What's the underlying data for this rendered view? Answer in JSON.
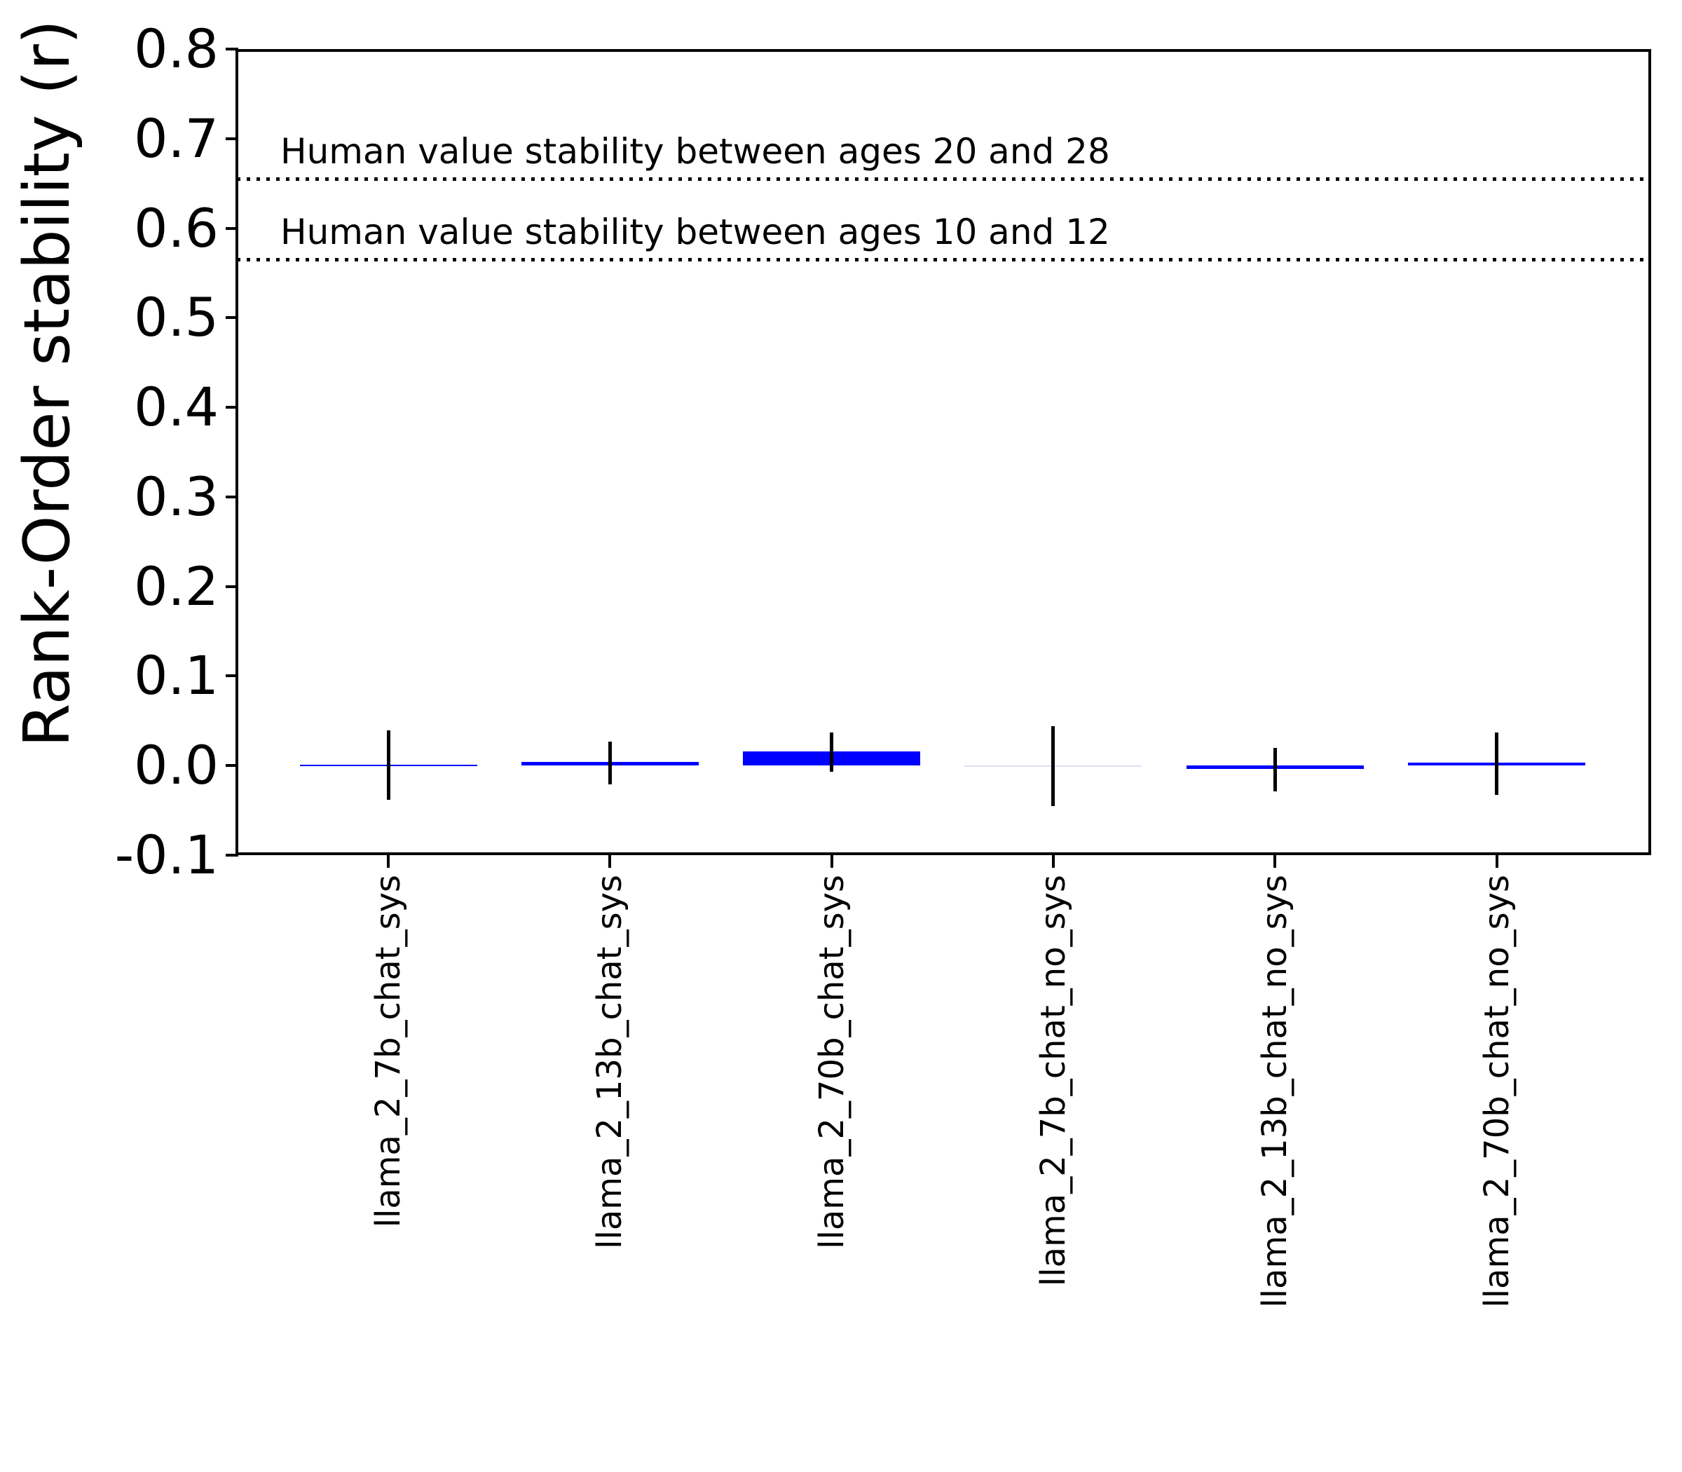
{
  "figure": {
    "background_color": "#ffffff",
    "y_axis_label": "Rank-Order stability (r)"
  },
  "chart_data": {
    "type": "bar",
    "title": "",
    "xlabel": "",
    "ylabel": "Rank-Order stability (r)",
    "ylim": [
      -0.1,
      0.8
    ],
    "grid": false,
    "legend": "none",
    "y_ticks": [
      0.8,
      0.7,
      0.6,
      0.5,
      0.4,
      0.3,
      0.2,
      0.1,
      0.0,
      -0.1
    ],
    "y_tick_labels": [
      "0.8",
      "0.7",
      "0.6",
      "0.5",
      "0.4",
      "0.3",
      "0.2",
      "0.1",
      "0.0",
      "-0.1"
    ],
    "categories": [
      "llama_2_7b_chat_sys",
      "llama_2_13b_chat_sys",
      "llama_2_70b_chat_sys",
      "llama_2_7b_chat_no_sys",
      "llama_2_13b_chat_no_sys",
      "llama_2_70b_chat_no_sys"
    ],
    "values": [
      0.001,
      0.004,
      0.016,
      0.0005,
      -0.004,
      0.003
    ],
    "error_low": [
      -0.038,
      -0.021,
      -0.007,
      -0.045,
      -0.029,
      -0.033
    ],
    "error_high": [
      0.039,
      0.027,
      0.037,
      0.044,
      0.02,
      0.037
    ],
    "bar_colors": [
      "#0000ff",
      "#0000ff",
      "#0000ff",
      "#dedcf7",
      "#0000ff",
      "#0000ff"
    ],
    "error_bar_color": "#000000",
    "reference_lines": [
      {
        "value": 0.655,
        "label": "Human value stability between ages 20 and 28",
        "style": "dotted",
        "color": "#000000"
      },
      {
        "value": 0.565,
        "label": "Human value stability between ages 10 and 12",
        "style": "dotted",
        "color": "#000000"
      }
    ]
  }
}
